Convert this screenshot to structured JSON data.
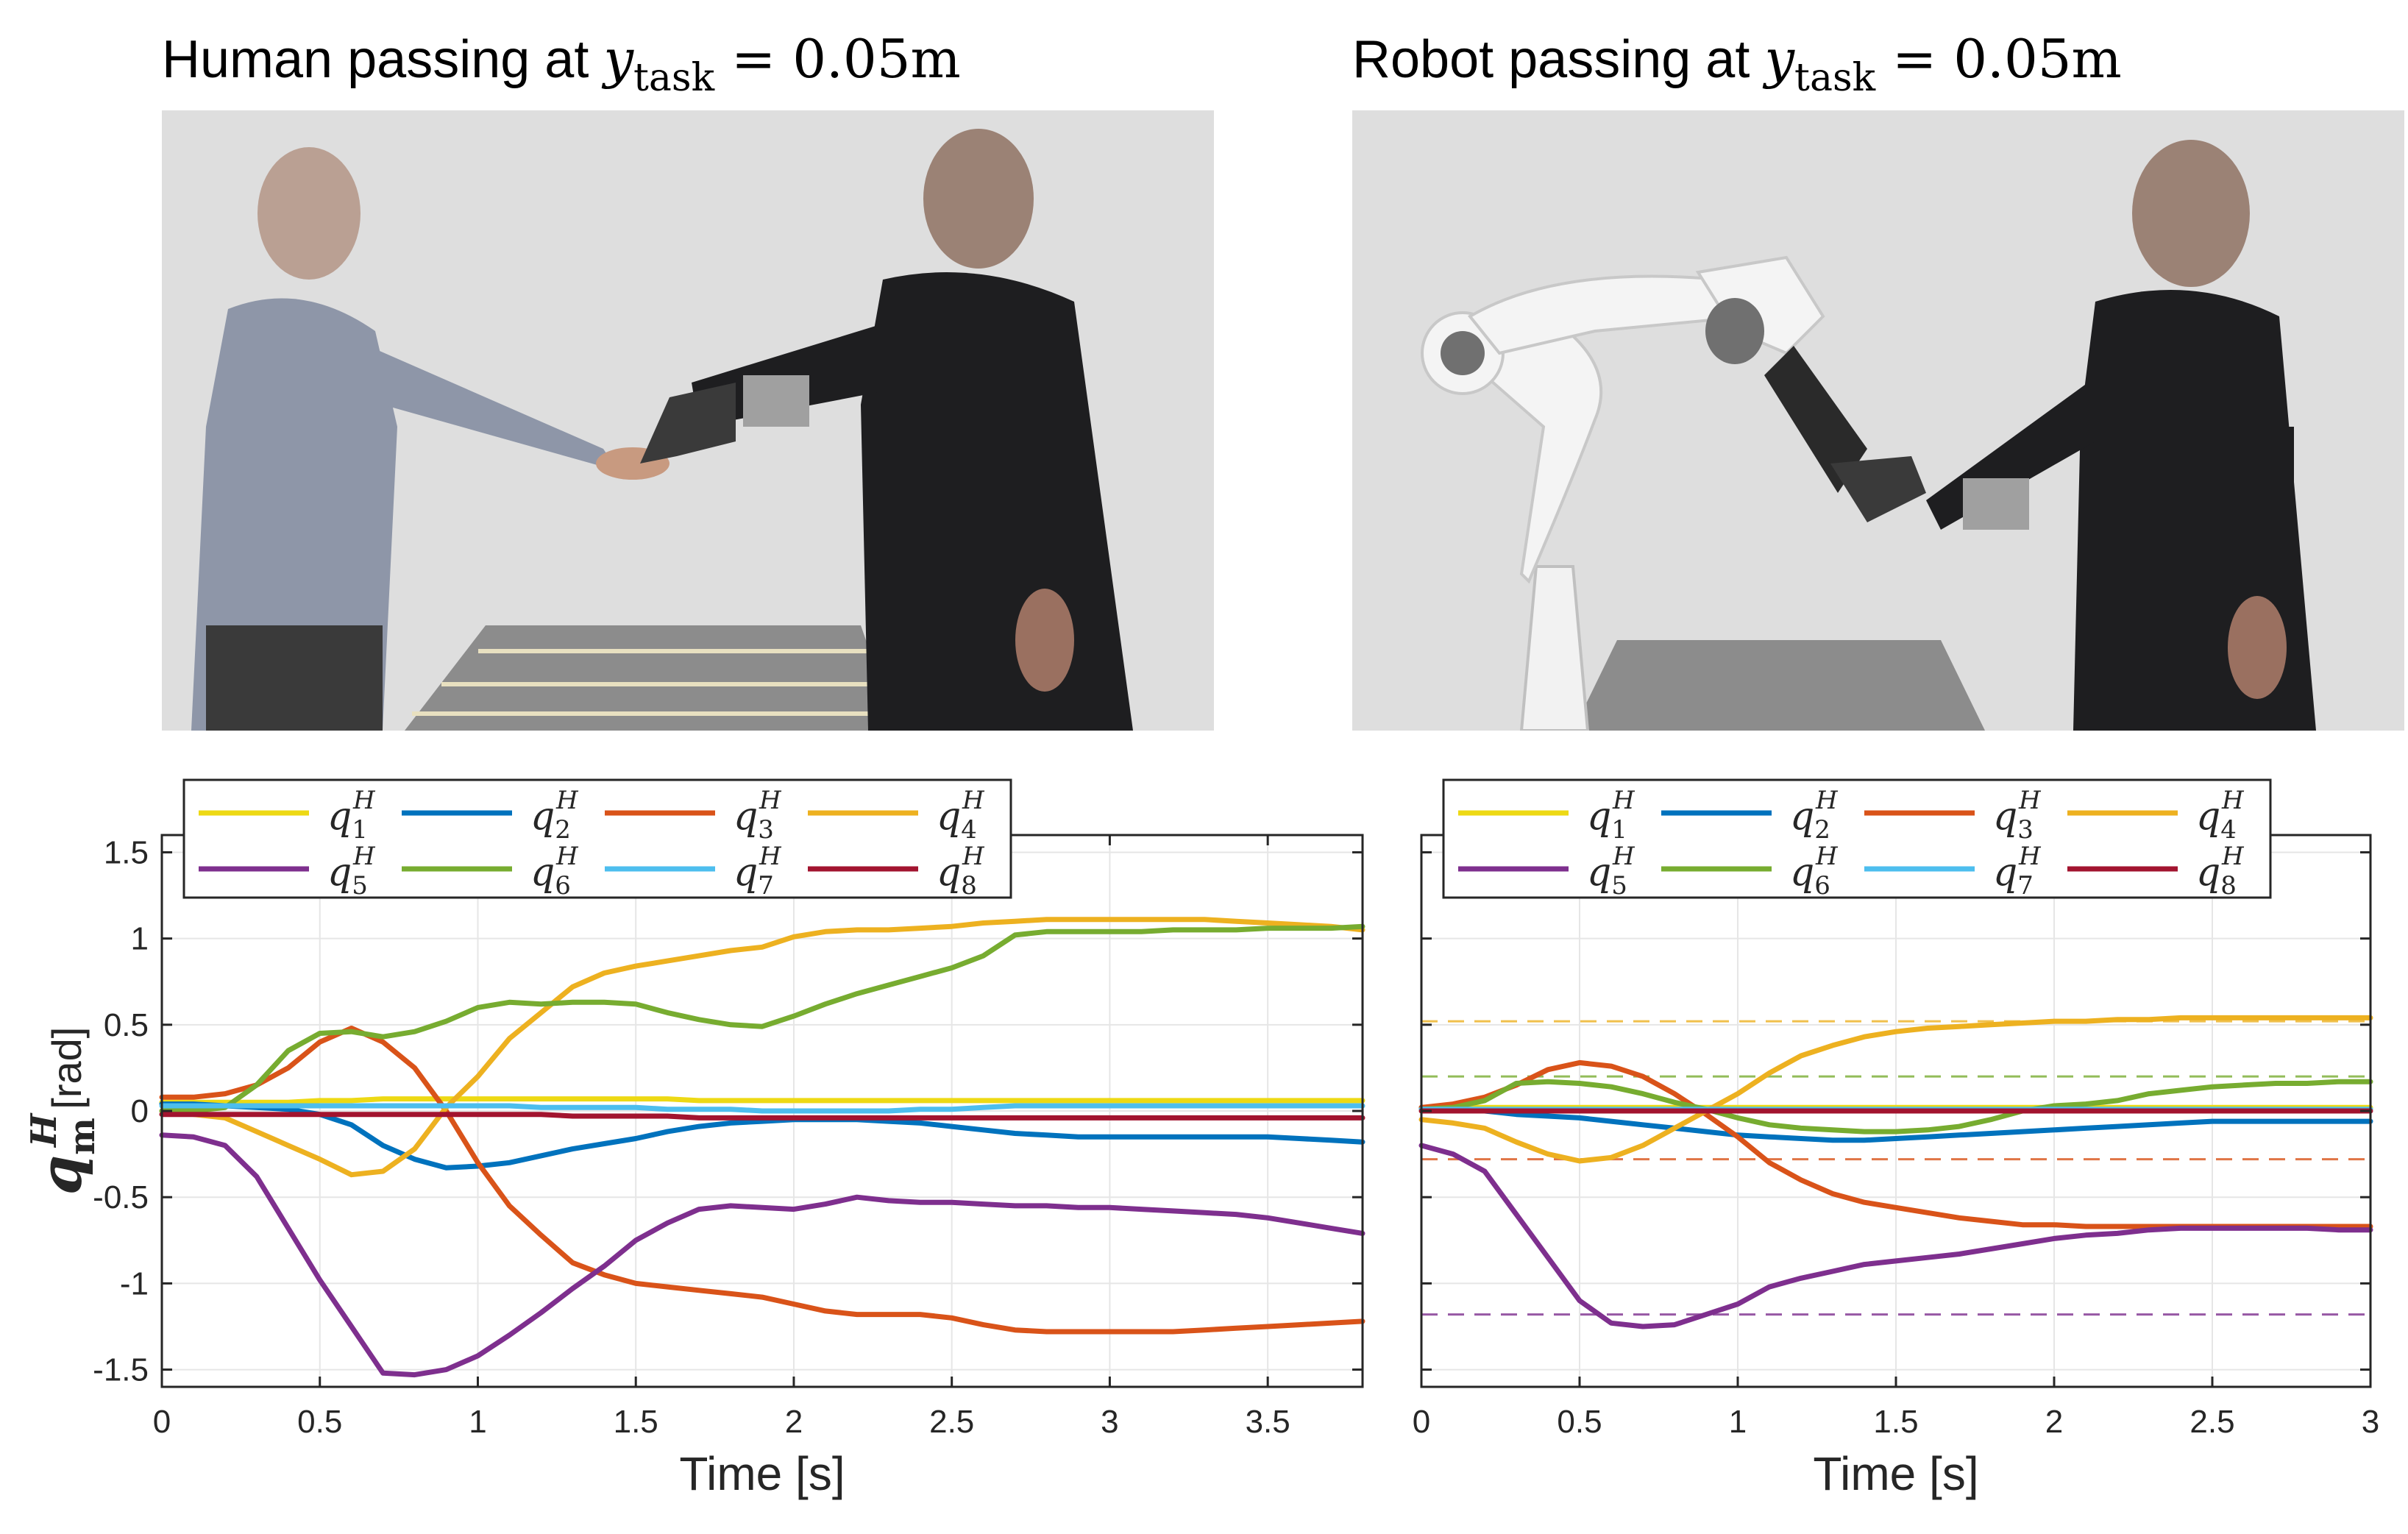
{
  "titles": {
    "left": {
      "prefix": "Human passing at ",
      "var": "y",
      "sub": "task",
      "suffix": " = 0.05m"
    },
    "right": {
      "prefix": "Robot passing at ",
      "var": "y",
      "sub": "task",
      "suffix": " = 0.05m"
    }
  },
  "photos": {
    "left": "photo-human-to-human-handover",
    "right": "photo-robot-to-human-handover"
  },
  "colors": {
    "q1": "#EDD914",
    "q2": "#0072BD",
    "q3": "#D95319",
    "q4": "#EDB120",
    "q5": "#7E2F8E",
    "q6": "#77AC30",
    "q7": "#4DBEEE",
    "q8": "#A2142F",
    "grid": "#e6e6e6",
    "axis": "#262626"
  },
  "chart_data": [
    {
      "type": "line",
      "panel": "left",
      "xlabel": "Time [s]",
      "ylabel": "q_m^H [rad]",
      "xlim": [
        0,
        3.8
      ],
      "ylim": [
        -1.6,
        1.6
      ],
      "xticks": [
        0,
        0.5,
        1,
        1.5,
        2,
        2.5,
        3,
        3.5
      ],
      "xticklabels": [
        "0",
        "0.5",
        "1",
        "1.5",
        "2",
        "2.5",
        "3",
        "3.5"
      ],
      "yticks": [
        -1.5,
        -1,
        -0.5,
        0,
        0.5,
        1,
        1.5
      ],
      "yticklabels": [
        "-1.5",
        "-1",
        "-0.5",
        "0",
        "0.5",
        "1",
        "1.5"
      ],
      "grid": true,
      "legend": "top-left",
      "x": [
        0,
        0.1,
        0.2,
        0.3,
        0.4,
        0.5,
        0.6,
        0.7,
        0.8,
        0.9,
        1.0,
        1.1,
        1.2,
        1.3,
        1.4,
        1.5,
        1.6,
        1.7,
        1.8,
        1.9,
        2.0,
        2.1,
        2.2,
        2.3,
        2.4,
        2.5,
        2.6,
        2.7,
        2.8,
        2.9,
        3.0,
        3.1,
        3.2,
        3.3,
        3.4,
        3.5,
        3.6,
        3.7,
        3.8
      ],
      "series": [
        {
          "name": "q1",
          "values": [
            0.05,
            0.05,
            0.05,
            0.05,
            0.05,
            0.06,
            0.06,
            0.07,
            0.07,
            0.07,
            0.07,
            0.07,
            0.07,
            0.07,
            0.07,
            0.07,
            0.07,
            0.06,
            0.06,
            0.06,
            0.06,
            0.06,
            0.06,
            0.06,
            0.06,
            0.06,
            0.06,
            0.06,
            0.06,
            0.06,
            0.06,
            0.06,
            0.06,
            0.06,
            0.06,
            0.06,
            0.06,
            0.06,
            0.06
          ]
        },
        {
          "name": "q2",
          "values": [
            0.04,
            0.04,
            0.03,
            0.02,
            0.01,
            -0.02,
            -0.08,
            -0.2,
            -0.28,
            -0.33,
            -0.32,
            -0.3,
            -0.26,
            -0.22,
            -0.19,
            -0.16,
            -0.12,
            -0.09,
            -0.07,
            -0.06,
            -0.05,
            -0.05,
            -0.05,
            -0.06,
            -0.07,
            -0.09,
            -0.11,
            -0.13,
            -0.14,
            -0.15,
            -0.15,
            -0.15,
            -0.15,
            -0.15,
            -0.15,
            -0.15,
            -0.16,
            -0.17,
            -0.18
          ]
        },
        {
          "name": "q3",
          "values": [
            0.08,
            0.08,
            0.1,
            0.15,
            0.25,
            0.4,
            0.48,
            0.4,
            0.25,
            0.0,
            -0.3,
            -0.55,
            -0.72,
            -0.88,
            -0.95,
            -1.0,
            -1.02,
            -1.04,
            -1.06,
            -1.08,
            -1.12,
            -1.16,
            -1.18,
            -1.18,
            -1.18,
            -1.2,
            -1.24,
            -1.27,
            -1.28,
            -1.28,
            -1.28,
            -1.28,
            -1.28,
            -1.27,
            -1.26,
            -1.25,
            -1.24,
            -1.23,
            -1.22
          ]
        },
        {
          "name": "q4",
          "values": [
            0.0,
            -0.02,
            -0.04,
            -0.12,
            -0.2,
            -0.28,
            -0.37,
            -0.35,
            -0.22,
            0.02,
            0.2,
            0.42,
            0.57,
            0.72,
            0.8,
            0.84,
            0.87,
            0.9,
            0.93,
            0.95,
            1.01,
            1.04,
            1.05,
            1.05,
            1.06,
            1.07,
            1.09,
            1.1,
            1.11,
            1.11,
            1.11,
            1.11,
            1.11,
            1.11,
            1.1,
            1.09,
            1.08,
            1.07,
            1.05
          ]
        },
        {
          "name": "q5",
          "values": [
            -0.14,
            -0.15,
            -0.2,
            -0.38,
            -0.68,
            -0.98,
            -1.25,
            -1.52,
            -1.53,
            -1.5,
            -1.42,
            -1.3,
            -1.17,
            -1.03,
            -0.9,
            -0.75,
            -0.65,
            -0.57,
            -0.55,
            -0.56,
            -0.57,
            -0.54,
            -0.5,
            -0.52,
            -0.53,
            -0.53,
            -0.54,
            -0.55,
            -0.55,
            -0.56,
            -0.56,
            -0.57,
            -0.58,
            -0.59,
            -0.6,
            -0.62,
            -0.65,
            -0.68,
            -0.71
          ]
        },
        {
          "name": "q6",
          "values": [
            0.0,
            0.0,
            0.02,
            0.15,
            0.35,
            0.45,
            0.46,
            0.43,
            0.46,
            0.52,
            0.6,
            0.63,
            0.62,
            0.63,
            0.63,
            0.62,
            0.57,
            0.53,
            0.5,
            0.49,
            0.55,
            0.62,
            0.68,
            0.73,
            0.78,
            0.83,
            0.9,
            1.02,
            1.04,
            1.04,
            1.04,
            1.04,
            1.05,
            1.05,
            1.05,
            1.06,
            1.06,
            1.06,
            1.07
          ]
        },
        {
          "name": "q7",
          "values": [
            0.03,
            0.03,
            0.03,
            0.03,
            0.03,
            0.03,
            0.03,
            0.03,
            0.03,
            0.03,
            0.03,
            0.03,
            0.02,
            0.02,
            0.02,
            0.02,
            0.01,
            0.01,
            0.01,
            0.0,
            0.0,
            0.0,
            0.0,
            0.0,
            0.01,
            0.01,
            0.02,
            0.03,
            0.03,
            0.03,
            0.03,
            0.03,
            0.03,
            0.03,
            0.03,
            0.03,
            0.03,
            0.03,
            0.03
          ]
        },
        {
          "name": "q8",
          "values": [
            -0.02,
            -0.02,
            -0.02,
            -0.02,
            -0.02,
            -0.02,
            -0.02,
            -0.02,
            -0.02,
            -0.02,
            -0.02,
            -0.02,
            -0.02,
            -0.03,
            -0.03,
            -0.03,
            -0.03,
            -0.04,
            -0.04,
            -0.04,
            -0.04,
            -0.04,
            -0.04,
            -0.04,
            -0.04,
            -0.04,
            -0.04,
            -0.04,
            -0.04,
            -0.04,
            -0.04,
            -0.04,
            -0.04,
            -0.04,
            -0.04,
            -0.04,
            -0.04,
            -0.04,
            -0.04
          ]
        }
      ]
    },
    {
      "type": "line",
      "panel": "right",
      "xlabel": "Time [s]",
      "ylabel": "",
      "xlim": [
        0,
        3
      ],
      "ylim": [
        -1.6,
        1.6
      ],
      "xticks": [
        0,
        0.5,
        1,
        1.5,
        2,
        2.5,
        3
      ],
      "xticklabels": [
        "0",
        "0.5",
        "1",
        "1.5",
        "2",
        "2.5",
        "3"
      ],
      "yticks": [
        -1.5,
        -1,
        -0.5,
        0,
        0.5,
        1,
        1.5
      ],
      "yticklabels": [],
      "grid": true,
      "legend": "top-left",
      "x": [
        0,
        0.1,
        0.2,
        0.3,
        0.4,
        0.5,
        0.6,
        0.7,
        0.8,
        0.9,
        1.0,
        1.1,
        1.2,
        1.3,
        1.4,
        1.5,
        1.6,
        1.7,
        1.8,
        1.9,
        2.0,
        2.1,
        2.2,
        2.3,
        2.4,
        2.5,
        2.6,
        2.7,
        2.8,
        2.9,
        3.0
      ],
      "series": [
        {
          "name": "q1",
          "values": [
            0.02,
            0.02,
            0.02,
            0.02,
            0.02,
            0.02,
            0.02,
            0.02,
            0.02,
            0.02,
            0.02,
            0.02,
            0.02,
            0.02,
            0.02,
            0.02,
            0.02,
            0.02,
            0.02,
            0.02,
            0.02,
            0.02,
            0.02,
            0.02,
            0.02,
            0.02,
            0.02,
            0.02,
            0.02,
            0.02,
            0.02
          ]
        },
        {
          "name": "q2",
          "values": [
            0.02,
            0.01,
            0.0,
            -0.02,
            -0.03,
            -0.04,
            -0.06,
            -0.08,
            -0.1,
            -0.12,
            -0.14,
            -0.15,
            -0.16,
            -0.17,
            -0.17,
            -0.16,
            -0.15,
            -0.14,
            -0.13,
            -0.12,
            -0.11,
            -0.1,
            -0.09,
            -0.08,
            -0.07,
            -0.06,
            -0.06,
            -0.06,
            -0.06,
            -0.06,
            -0.06
          ]
        },
        {
          "name": "q3",
          "values": [
            0.02,
            0.04,
            0.08,
            0.15,
            0.24,
            0.28,
            0.26,
            0.2,
            0.1,
            -0.02,
            -0.15,
            -0.3,
            -0.4,
            -0.48,
            -0.53,
            -0.56,
            -0.59,
            -0.62,
            -0.64,
            -0.66,
            -0.66,
            -0.67,
            -0.67,
            -0.67,
            -0.67,
            -0.67,
            -0.67,
            -0.67,
            -0.67,
            -0.67,
            -0.67
          ]
        },
        {
          "name": "q4",
          "values": [
            -0.05,
            -0.07,
            -0.1,
            -0.18,
            -0.25,
            -0.29,
            -0.27,
            -0.2,
            -0.1,
            0.0,
            0.1,
            0.22,
            0.32,
            0.38,
            0.43,
            0.46,
            0.48,
            0.49,
            0.5,
            0.51,
            0.52,
            0.52,
            0.53,
            0.53,
            0.54,
            0.54,
            0.54,
            0.54,
            0.54,
            0.54,
            0.54
          ]
        },
        {
          "name": "q5",
          "values": [
            -0.2,
            -0.25,
            -0.35,
            -0.6,
            -0.85,
            -1.1,
            -1.23,
            -1.25,
            -1.24,
            -1.18,
            -1.12,
            -1.02,
            -0.97,
            -0.93,
            -0.89,
            -0.87,
            -0.85,
            -0.83,
            -0.8,
            -0.77,
            -0.74,
            -0.72,
            -0.71,
            -0.69,
            -0.68,
            -0.68,
            -0.68,
            -0.68,
            -0.68,
            -0.69,
            -0.69
          ]
        },
        {
          "name": "q6",
          "values": [
            0.01,
            0.02,
            0.06,
            0.16,
            0.17,
            0.16,
            0.14,
            0.1,
            0.05,
            0.01,
            -0.04,
            -0.08,
            -0.1,
            -0.11,
            -0.12,
            -0.12,
            -0.11,
            -0.09,
            -0.05,
            0.0,
            0.03,
            0.04,
            0.06,
            0.1,
            0.12,
            0.14,
            0.15,
            0.16,
            0.16,
            0.17,
            0.17
          ]
        },
        {
          "name": "q7",
          "values": [
            0.01,
            0.01,
            0.01,
            0.01,
            0.01,
            0.01,
            0.01,
            0.01,
            0.01,
            0.01,
            0.01,
            0.01,
            0.01,
            0.01,
            0.01,
            0.01,
            0.01,
            0.01,
            0.01,
            0.01,
            0.01,
            0.01,
            0.01,
            0.01,
            0.01,
            0.01,
            0.01,
            0.01,
            0.01,
            0.01,
            0.01
          ]
        },
        {
          "name": "q8",
          "values": [
            0.0,
            0.0,
            0.0,
            0.0,
            0.0,
            0.0,
            0.0,
            0.0,
            0.0,
            0.0,
            0.0,
            0.0,
            0.0,
            0.0,
            0.0,
            0.0,
            0.0,
            0.0,
            0.0,
            0.0,
            0.0,
            0.0,
            0.0,
            0.0,
            0.0,
            0.0,
            0.0,
            0.0,
            0.0,
            0.0,
            0.0
          ]
        }
      ],
      "reference_lines": [
        {
          "series": "q4",
          "y": 0.52
        },
        {
          "series": "q6",
          "y": 0.2
        },
        {
          "series": "q8",
          "y": 0.02
        },
        {
          "series": "q3",
          "y": -0.28
        },
        {
          "series": "q5",
          "y": -1.18
        }
      ]
    }
  ],
  "legend_labels": {
    "q1": {
      "base": "q",
      "sub": "1",
      "sup": "H"
    },
    "q2": {
      "base": "q",
      "sub": "2",
      "sup": "H"
    },
    "q3": {
      "base": "q",
      "sub": "3",
      "sup": "H"
    },
    "q4": {
      "base": "q",
      "sub": "4",
      "sup": "H"
    },
    "q5": {
      "base": "q",
      "sub": "5",
      "sup": "H"
    },
    "q6": {
      "base": "q",
      "sub": "6",
      "sup": "H"
    },
    "q7": {
      "base": "q",
      "sub": "7",
      "sup": "H"
    },
    "q8": {
      "base": "q",
      "sub": "8",
      "sup": "H"
    }
  },
  "ylabel_parts": {
    "base": "q",
    "sub": "m",
    "sup": "H",
    "unit": "[rad]"
  }
}
